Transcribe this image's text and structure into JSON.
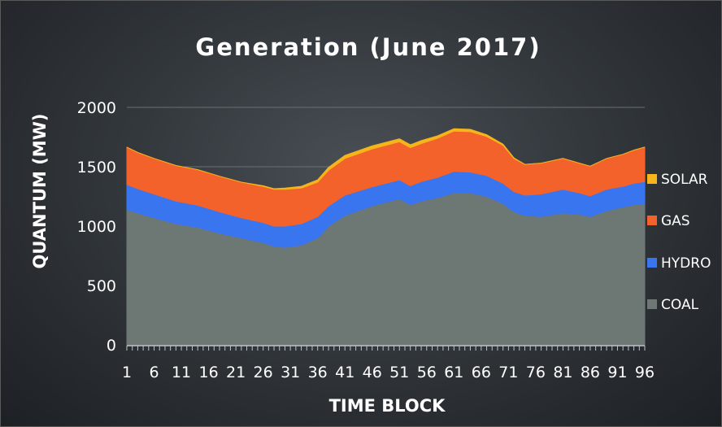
{
  "chart_data": {
    "type": "area",
    "stacked": true,
    "title": "Generation (June 2017)",
    "xlabel": "TIME BLOCK",
    "ylabel": "QUANTUM (MW)",
    "ylim": [
      0,
      2000
    ],
    "yticks": [
      0,
      500,
      1000,
      1500,
      2000
    ],
    "xticks": [
      1,
      6,
      11,
      16,
      21,
      26,
      31,
      36,
      41,
      46,
      51,
      56,
      61,
      66,
      71,
      76,
      81,
      86,
      91,
      96
    ],
    "xlim": [
      1,
      96
    ],
    "grid": "horizontal",
    "legend_position": "right",
    "x": [
      1,
      3,
      6,
      10,
      14,
      18,
      22,
      26,
      28,
      30,
      33,
      36,
      38,
      41,
      46,
      51,
      53,
      55,
      58,
      61,
      64,
      67,
      70,
      72,
      74,
      77,
      81,
      84,
      86,
      89,
      92,
      94,
      96
    ],
    "series": [
      {
        "name": "COAL",
        "color": "#6d7773",
        "values": [
          1140,
          1110,
          1070,
          1020,
          990,
          940,
          900,
          860,
          830,
          820,
          840,
          900,
          1000,
          1090,
          1170,
          1230,
          1180,
          1210,
          1240,
          1280,
          1280,
          1250,
          1190,
          1120,
          1090,
          1080,
          1110,
          1100,
          1080,
          1130,
          1160,
          1180,
          1190
        ]
      },
      {
        "name": "HYDRO",
        "color": "#3a75f0",
        "values": [
          210,
          205,
          200,
          190,
          185,
          180,
          170,
          170,
          170,
          180,
          180,
          180,
          170,
          170,
          160,
          160,
          160,
          165,
          170,
          180,
          175,
          175,
          170,
          170,
          170,
          190,
          200,
          180,
          175,
          180,
          175,
          180,
          185
        ]
      },
      {
        "name": "GAS",
        "color": "#f2622a",
        "values": [
          315,
          305,
          300,
          300,
          300,
          300,
          300,
          305,
          310,
          310,
          300,
          290,
          300,
          310,
          320,
          320,
          320,
          320,
          330,
          340,
          340,
          330,
          320,
          280,
          260,
          260,
          260,
          250,
          250,
          260,
          270,
          280,
          290
        ]
      },
      {
        "name": "SOLAR",
        "color": "#f5b51b",
        "values": [
          0,
          0,
          0,
          0,
          0,
          0,
          0,
          5,
          5,
          10,
          15,
          20,
          25,
          25,
          25,
          25,
          25,
          25,
          20,
          20,
          20,
          15,
          10,
          5,
          0,
          0,
          0,
          0,
          0,
          0,
          0,
          0,
          0
        ]
      }
    ],
    "legend_order": [
      "SOLAR",
      "GAS",
      "HYDRO",
      "COAL"
    ]
  }
}
